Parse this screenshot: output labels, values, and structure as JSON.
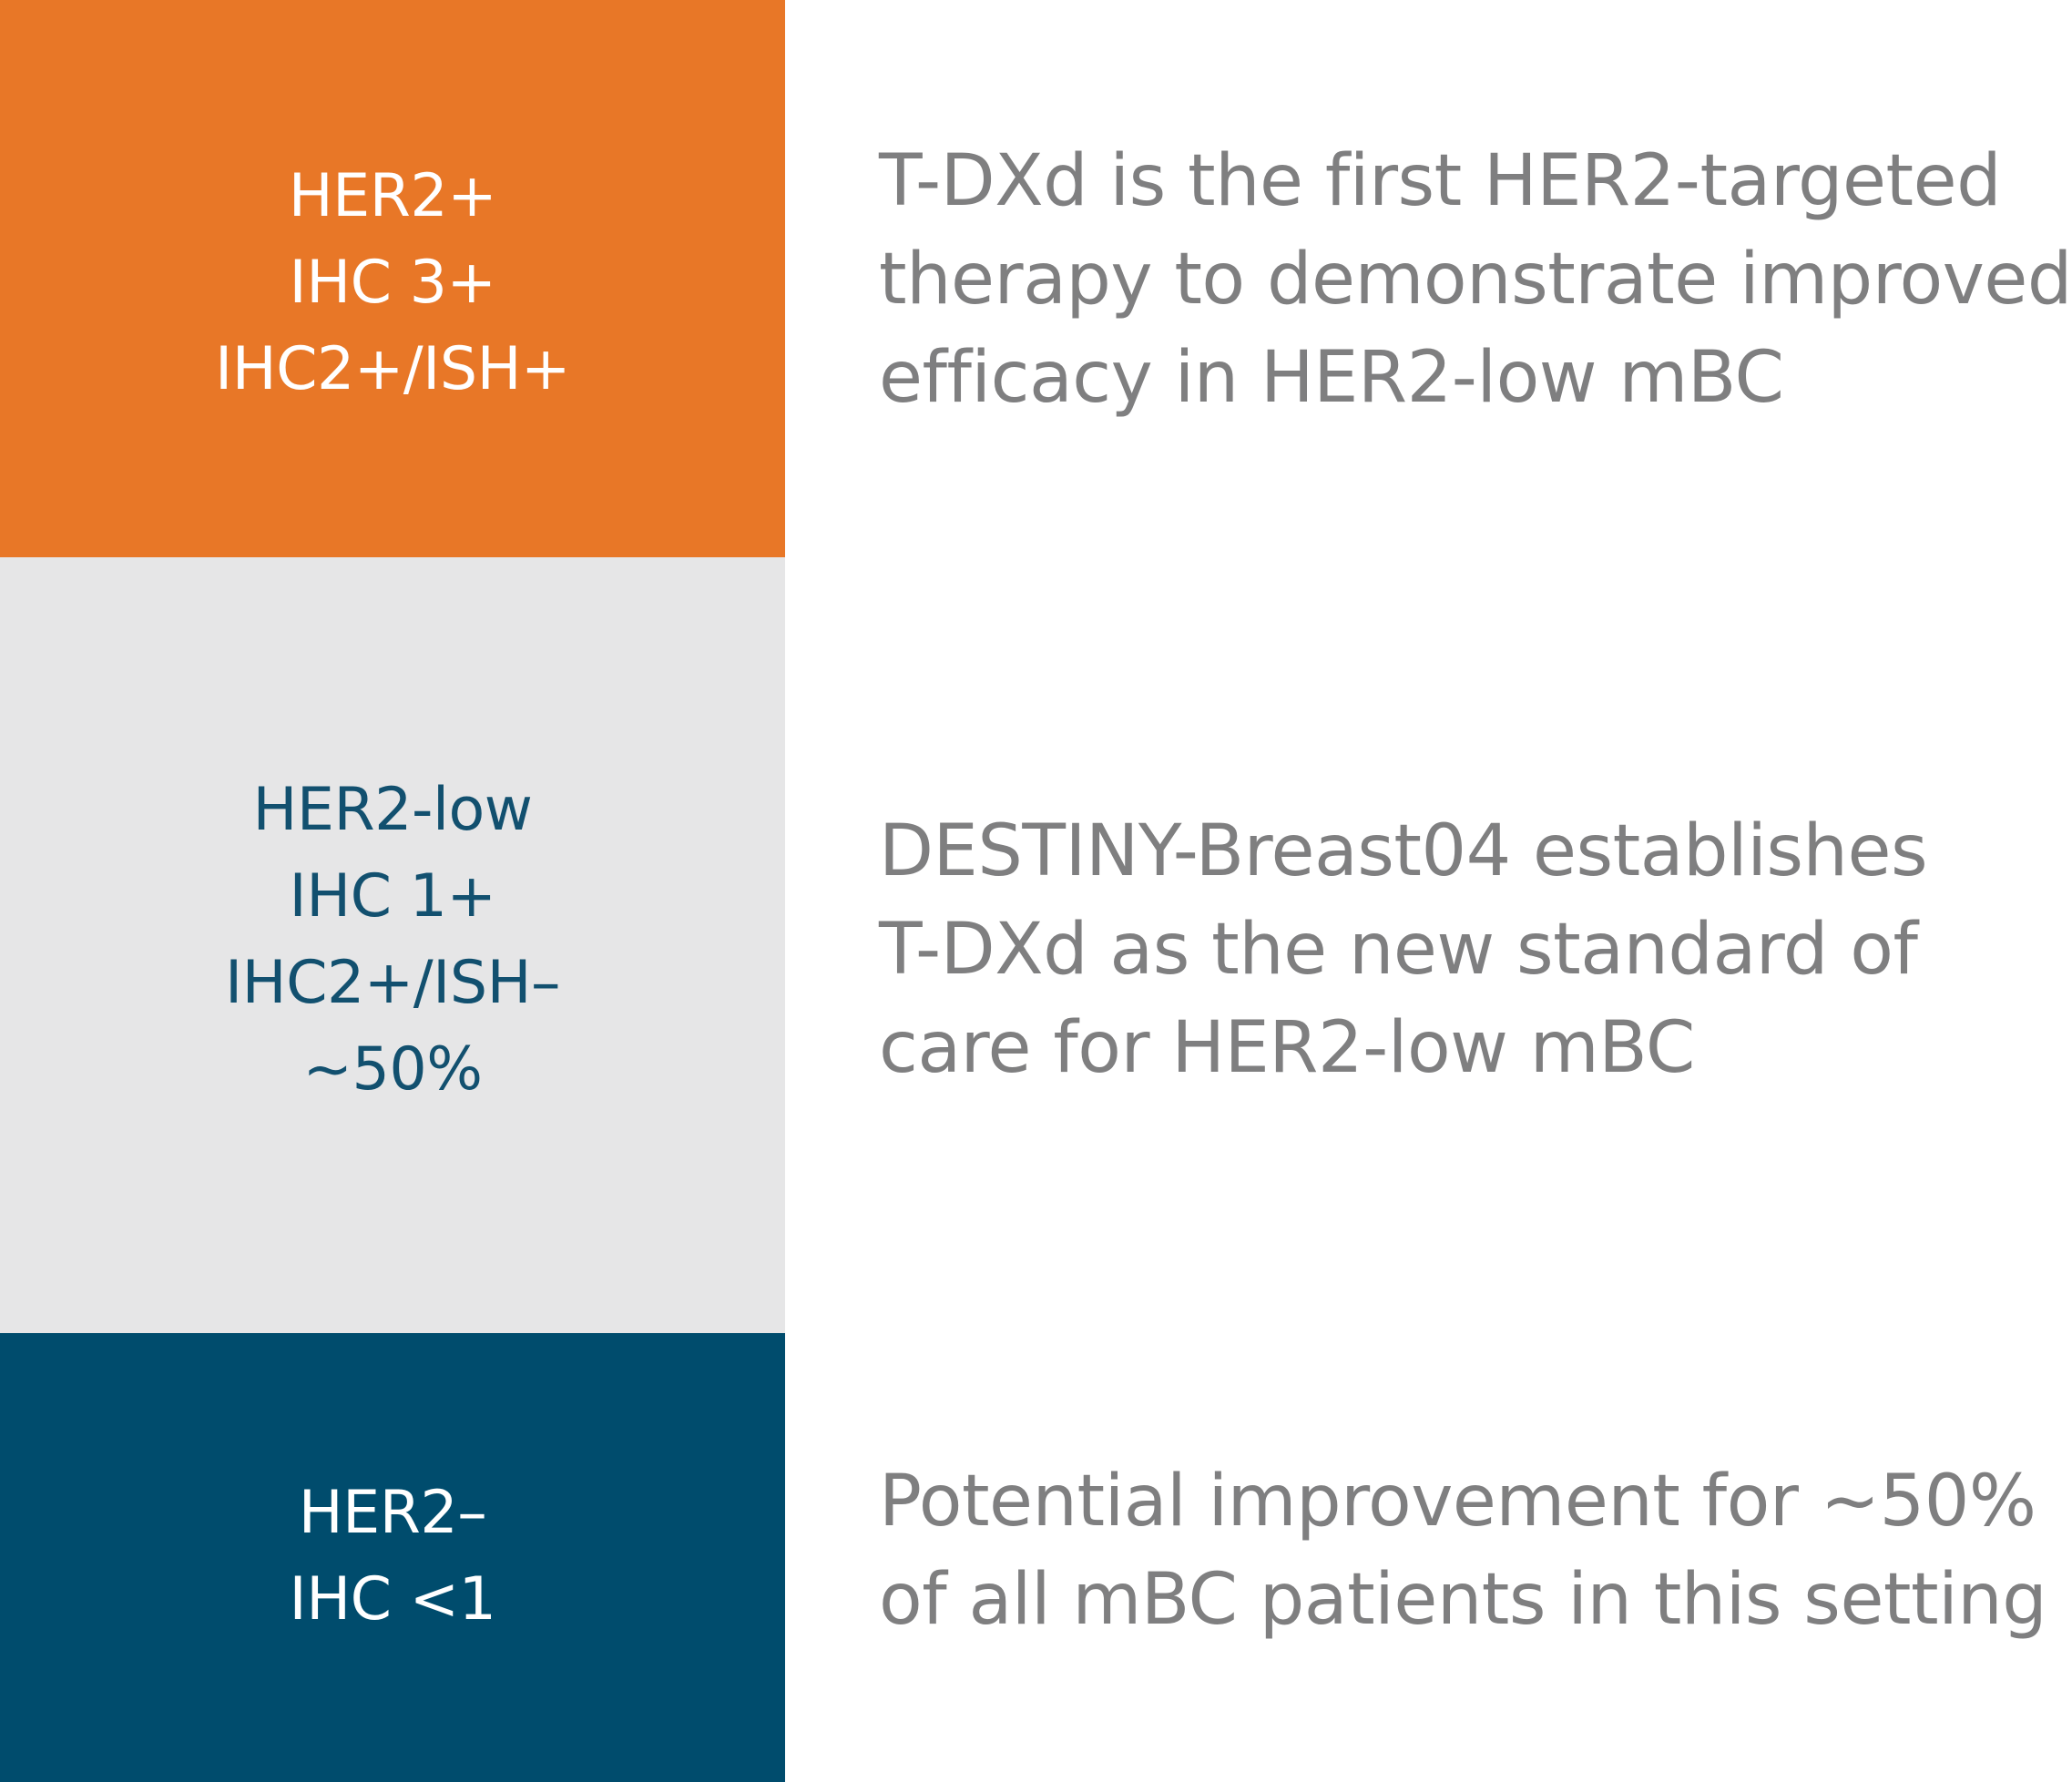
{
  "categories": [
    {
      "lines": [
        "HER2+",
        "IHC 3+",
        "IHC2+/ISH+"
      ],
      "color": "#E87727",
      "text_color": "#FFFFFF"
    },
    {
      "lines": [
        "HER2-low",
        "IHC 1+",
        "IHC2+/ISH–",
        "~50%"
      ],
      "color": "#E6E6E7",
      "text_color": "#12506F"
    },
    {
      "lines": [
        "HER2–",
        "IHC <1"
      ],
      "color": "#004C6D",
      "text_color": "#FFFFFF"
    }
  ],
  "descriptions": [
    {
      "lines": [
        "T-DXd is the first HER2-targeted",
        "therapy to demonstrate improved",
        "efficacy in HER2-low mBC"
      ]
    },
    {
      "lines": [
        "DESTINY-Breast04 establishes",
        "T-DXd as the new standard of",
        "care for HER2-low mBC"
      ]
    },
    {
      "lines": [
        "Potential improvement for ~50%",
        "of all mBC patients in this setting"
      ]
    }
  ],
  "text_color_description": "#7F7F80"
}
